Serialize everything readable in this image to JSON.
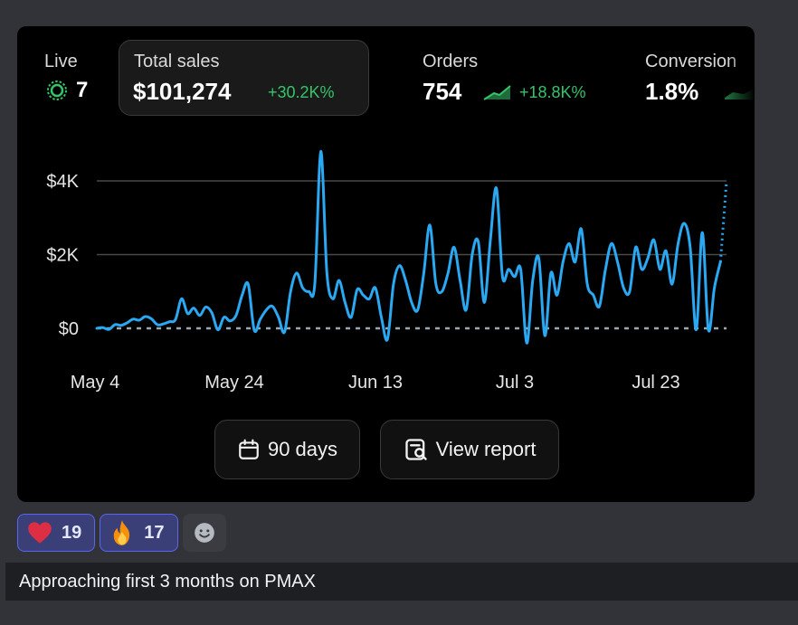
{
  "stats": {
    "live": {
      "label": "Live",
      "value": "7"
    },
    "total_sales": {
      "label": "Total sales",
      "value": "$101,274",
      "delta": "+30.2K%"
    },
    "orders": {
      "label": "Orders",
      "value": "754",
      "delta": "+18.8K%"
    },
    "conversion": {
      "label": "Conversion",
      "value": "1.8%"
    }
  },
  "chart_data": {
    "type": "line",
    "x_ticks": [
      "May 4",
      "May 24",
      "Jun 13",
      "Jul 3",
      "Jul 23"
    ],
    "y_ticks": [
      "$0",
      "$2K",
      "$4K"
    ],
    "ylim": [
      0,
      4000
    ],
    "start_date": "May 4",
    "series": [
      {
        "values": [
          0,
          20,
          -30,
          100,
          80,
          150,
          250,
          220,
          320,
          260,
          100,
          120,
          180,
          240,
          800,
          400,
          550,
          350,
          580,
          420,
          -40,
          300,
          200,
          350,
          900,
          1200,
          -50,
          250,
          500,
          600,
          300,
          -100,
          1000,
          1500,
          1100,
          1000,
          1200,
          4800,
          1500,
          800,
          1300,
          700,
          300,
          1050,
          900,
          800,
          1100,
          300,
          -300,
          1200,
          1700,
          1300,
          700,
          500,
          1500,
          2800,
          1200,
          1000,
          1500,
          2200,
          1300,
          500,
          2000,
          2350,
          700,
          2400,
          3800,
          1400,
          1600,
          1400,
          1600,
          -400,
          1300,
          1900,
          -200,
          1500,
          900,
          1800,
          2300,
          1800,
          2700,
          1200,
          900,
          600,
          1600,
          2300,
          1800,
          1100,
          1000,
          2200,
          1600,
          1900,
          2400,
          1600,
          2100,
          1200,
          2300,
          2850,
          2200,
          -40,
          2600,
          -40,
          1100,
          1800,
          4000
        ],
        "dashed_last": true
      }
    ],
    "comparison_values": [
      0,
      0,
      0,
      0,
      0,
      0,
      0,
      0,
      0,
      0,
      0,
      0,
      0,
      0,
      0,
      0,
      0,
      0,
      0,
      0,
      0,
      0,
      0,
      0,
      0,
      0,
      0,
      0,
      0,
      0,
      0,
      0,
      0,
      0,
      0,
      0,
      0,
      0,
      0,
      0,
      0,
      0,
      0,
      0,
      0,
      0,
      0,
      0,
      0,
      0,
      0,
      0,
      0,
      0,
      0,
      0,
      0,
      0,
      0,
      0,
      0,
      0,
      0,
      0,
      0,
      0,
      0,
      0,
      0,
      0,
      0,
      0,
      0,
      0,
      0,
      0,
      0,
      0,
      0,
      0,
      0,
      0,
      0,
      0,
      0,
      0,
      0,
      0,
      0,
      0,
      0,
      0,
      0,
      0,
      0,
      0,
      0,
      0,
      0,
      0,
      0,
      0,
      0,
      0,
      0
    ],
    "line_color": "#2aa8f2",
    "comparison_color": "#9aa7b0"
  },
  "buttons": {
    "range_label": "90 days",
    "report_label": "View report"
  },
  "reactions": [
    {
      "emoji": "heart",
      "count": "19"
    },
    {
      "emoji": "fire",
      "count": "17"
    }
  ],
  "message": "Approaching first 3 months on PMAX"
}
